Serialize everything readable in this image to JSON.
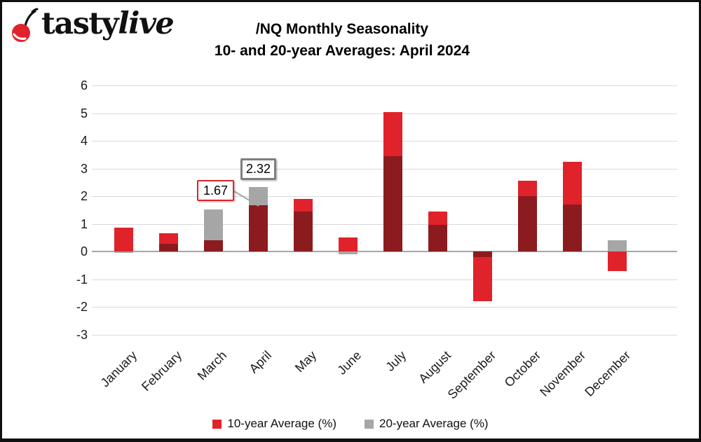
{
  "logo": {
    "tasty": "tasty",
    "live": "live"
  },
  "title": {
    "line1": "/NQ Monthly Seasonality",
    "line2": "10- and 20-year Averages: April 2024"
  },
  "chart_data": {
    "type": "bar",
    "subtype": "overlapped-bars",
    "categories": [
      "January",
      "February",
      "March",
      "April",
      "May",
      "June",
      "July",
      "August",
      "September",
      "October",
      "November",
      "December"
    ],
    "series": [
      {
        "name": "10-year Average (%)",
        "color": "#e0222b",
        "values": [
          0.85,
          0.65,
          0.4,
          1.67,
          1.9,
          0.5,
          5.05,
          1.45,
          -1.8,
          2.55,
          3.25,
          -0.7
        ]
      },
      {
        "name": "20-year Average (%)",
        "color": "#a6a6a6",
        "values": [
          -0.05,
          0.28,
          1.52,
          2.32,
          1.45,
          -0.1,
          3.45,
          0.95,
          -0.2,
          2.0,
          1.7,
          0.4
        ]
      }
    ],
    "overlap_color": "#8b1b1f",
    "ylim": [
      -3,
      6
    ],
    "ytick_interval": 1,
    "grid": true,
    "gridline_color": "#d9d9d9",
    "zeroline_color": "#a6a6a6",
    "legend_position": "bottom",
    "annotations": [
      {
        "text": "1.67",
        "month": "April",
        "series": "10-year Average (%)",
        "border_color": "#e0222b"
      },
      {
        "text": "2.32",
        "month": "April",
        "series": "20-year Average (%)",
        "border_color": "#7f7f7f"
      }
    ]
  },
  "colors": {
    "brand_red": "#e0222b",
    "gray": "#a6a6a6",
    "dark_overlap": "#8b1b1f",
    "text": "#1a1a1a"
  }
}
